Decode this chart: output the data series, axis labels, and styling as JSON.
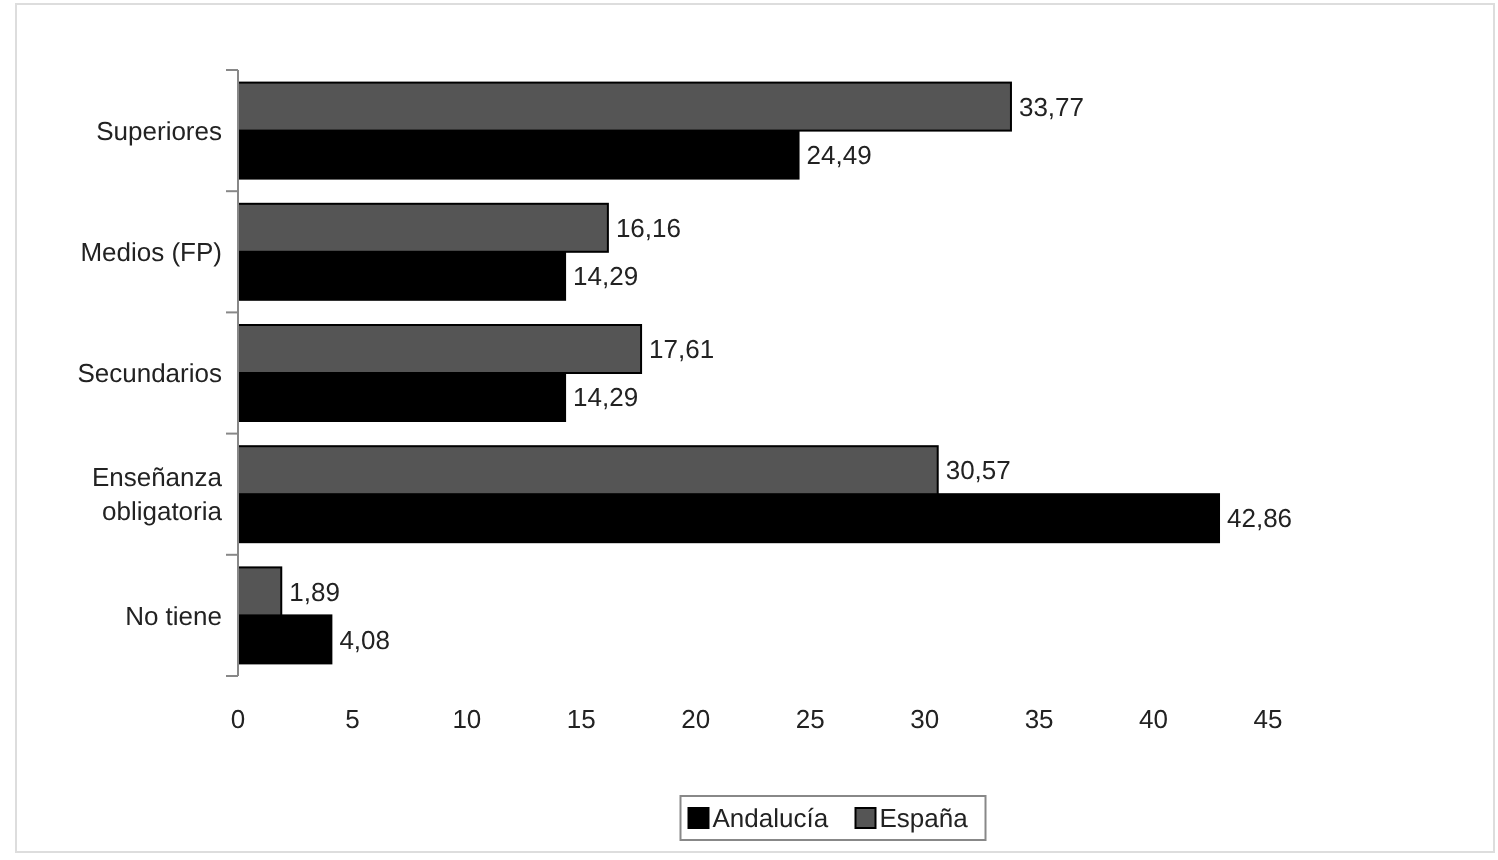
{
  "chart_data": {
    "type": "bar",
    "orientation": "horizontal",
    "categories": [
      "Superiores",
      "Medios (FP)",
      "Secundarios",
      "Enseñanza obligatoria",
      "No tiene"
    ],
    "series": [
      {
        "name": "Andalucía",
        "color": "#000000",
        "values": [
          24.49,
          14.29,
          14.29,
          42.86,
          4.08
        ],
        "value_labels": [
          "24,49",
          "14,29",
          "14,29",
          "42,86",
          "4,08"
        ]
      },
      {
        "name": "España",
        "color": "#555555",
        "values": [
          33.77,
          16.16,
          17.61,
          30.57,
          1.89
        ],
        "value_labels": [
          "33,77",
          "16,16",
          "17,61",
          "30,57",
          "1,89"
        ]
      }
    ],
    "xlim": [
      0,
      45
    ],
    "xticks": [
      0,
      5,
      10,
      15,
      20,
      25,
      30,
      35,
      40,
      45
    ],
    "grid": false,
    "legend": "bottom"
  }
}
